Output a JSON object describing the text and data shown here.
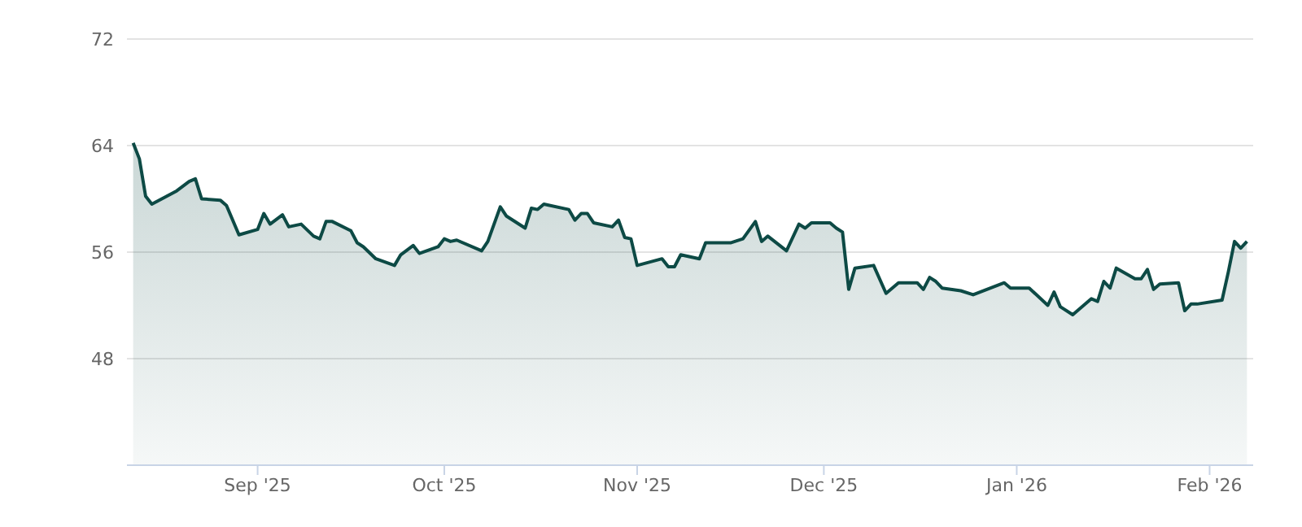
{
  "chart_data": {
    "type": "area",
    "grid": "y",
    "ylim": [
      40,
      72
    ],
    "yticks": [
      48,
      56,
      64,
      72
    ],
    "xlim": [
      "2025-08-11",
      "2026-02-08"
    ],
    "xticks": [
      {
        "value": "2025-09-01",
        "label": "Sep '25"
      },
      {
        "value": "2025-10-01",
        "label": "Oct '25"
      },
      {
        "value": "2025-11-01",
        "label": "Nov '25"
      },
      {
        "value": "2025-12-01",
        "label": "Dec '25"
      },
      {
        "value": "2026-01-01",
        "label": "Jan '26"
      },
      {
        "value": "2026-02-01",
        "label": "Feb '26"
      }
    ],
    "x": [
      "2025-08-12",
      "2025-08-13",
      "2025-08-14",
      "2025-08-15",
      "2025-08-19",
      "2025-08-21",
      "2025-08-22",
      "2025-08-23",
      "2025-08-26",
      "2025-08-27",
      "2025-08-29",
      "2025-09-01",
      "2025-09-02",
      "2025-09-03",
      "2025-09-05",
      "2025-09-06",
      "2025-09-08",
      "2025-09-10",
      "2025-09-11",
      "2025-09-12",
      "2025-09-13",
      "2025-09-16",
      "2025-09-17",
      "2025-09-18",
      "2025-09-20",
      "2025-09-23",
      "2025-09-24",
      "2025-09-26",
      "2025-09-27",
      "2025-09-30",
      "2025-10-01",
      "2025-10-02",
      "2025-10-03",
      "2025-10-07",
      "2025-10-08",
      "2025-10-10",
      "2025-10-11",
      "2025-10-14",
      "2025-10-15",
      "2025-10-16",
      "2025-10-17",
      "2025-10-21",
      "2025-10-22",
      "2025-10-23",
      "2025-10-24",
      "2025-10-25",
      "2025-10-28",
      "2025-10-29",
      "2025-10-30",
      "2025-10-31",
      "2025-11-01",
      "2025-11-05",
      "2025-11-06",
      "2025-11-07",
      "2025-11-08",
      "2025-11-11",
      "2025-11-12",
      "2025-11-16",
      "2025-11-18",
      "2025-11-20",
      "2025-11-21",
      "2025-11-22",
      "2025-11-25",
      "2025-11-27",
      "2025-11-28",
      "2025-11-29",
      "2025-12-02",
      "2025-12-03",
      "2025-12-04",
      "2025-12-05",
      "2025-12-06",
      "2025-12-09",
      "2025-12-11",
      "2025-12-13",
      "2025-12-16",
      "2025-12-17",
      "2025-12-18",
      "2025-12-19",
      "2025-12-20",
      "2025-12-23",
      "2025-12-25",
      "2025-12-30",
      "2025-12-31",
      "2026-01-03",
      "2026-01-06",
      "2026-01-07",
      "2026-01-08",
      "2026-01-10",
      "2026-01-13",
      "2026-01-14",
      "2026-01-15",
      "2026-01-16",
      "2026-01-17",
      "2026-01-20",
      "2026-01-21",
      "2026-01-22",
      "2026-01-23",
      "2026-01-24",
      "2026-01-27",
      "2026-01-28",
      "2026-01-29",
      "2026-01-30",
      "2026-02-03",
      "2026-02-04",
      "2026-02-05",
      "2026-02-06",
      "2026-02-07"
    ],
    "series": [
      {
        "color": "#0d4a45",
        "values": [
          64.2,
          63.0,
          60.2,
          59.6,
          60.6,
          61.3,
          61.5,
          60.0,
          59.9,
          59.5,
          57.3,
          57.7,
          58.9,
          58.1,
          58.8,
          57.9,
          58.1,
          57.2,
          57.0,
          58.3,
          58.3,
          57.6,
          56.7,
          56.4,
          55.5,
          55.0,
          55.8,
          56.5,
          55.9,
          56.4,
          57.0,
          56.8,
          56.9,
          56.1,
          56.8,
          59.4,
          58.7,
          57.8,
          59.3,
          59.2,
          59.6,
          59.2,
          58.4,
          58.9,
          58.9,
          58.2,
          57.9,
          58.4,
          57.1,
          57.0,
          55.0,
          55.5,
          54.9,
          54.9,
          55.8,
          55.5,
          56.7,
          56.7,
          57.0,
          58.3,
          56.8,
          57.2,
          56.1,
          58.1,
          57.8,
          58.2,
          58.2,
          57.8,
          57.5,
          53.2,
          54.8,
          55.0,
          52.9,
          53.7,
          53.7,
          53.2,
          54.1,
          53.8,
          53.3,
          53.1,
          52.8,
          53.7,
          53.3,
          53.3,
          52.0,
          53.0,
          51.9,
          51.3,
          52.5,
          52.3,
          53.8,
          53.3,
          54.8,
          54.0,
          54.0,
          54.7,
          53.2,
          53.6,
          53.7,
          51.6,
          52.1,
          52.1,
          52.4,
          54.5,
          56.8,
          56.3,
          56.8
        ]
      }
    ]
  }
}
